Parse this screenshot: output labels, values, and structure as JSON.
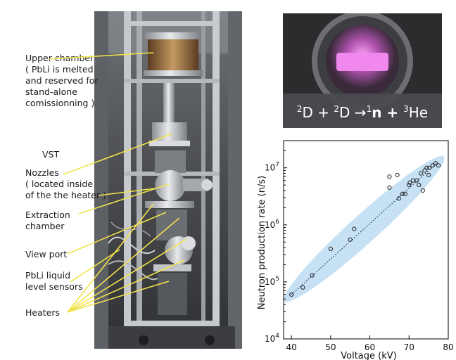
{
  "labels": {
    "upper_chamber": [
      "Upper chamber",
      "( PbLi is melted",
      "and reserved for",
      "stand-alone",
      "comissionning )"
    ],
    "vst": "VST",
    "nozzles": [
      "Nozzles",
      "( located inside",
      "of the the heater )"
    ],
    "extraction": [
      "Extraction",
      "chamber"
    ],
    "view_port": "View port",
    "level_sensors": [
      "PbLi liquid",
      "level sensors"
    ],
    "heaters": "Heaters"
  },
  "plasma_equation": {
    "m1": "2",
    "s1": "D + ",
    "m2": "2",
    "s2": "D →",
    "m3": "1",
    "s3": "n + ",
    "m4": "3",
    "s4": "He"
  },
  "colors": {
    "leader": "#f2e34a",
    "band": "#bcdcf2",
    "frame": "#b9bcc0",
    "plasma": "#e77be6"
  },
  "chart_data": {
    "type": "scatter",
    "xlabel": "Voltage (kV)",
    "ylabel": "Neutron production rate (n/s)",
    "xlim": [
      38,
      80
    ],
    "ylim": [
      10000,
      30000000
    ],
    "yscale": "log",
    "xticks": [
      40,
      50,
      60,
      70,
      80
    ],
    "yticks": [
      {
        "value": 10000,
        "base": "10",
        "exp": "4"
      },
      {
        "value": 100000,
        "base": "10",
        "exp": "5"
      },
      {
        "value": 1000000,
        "base": "10",
        "exp": "6"
      },
      {
        "value": 10000000,
        "base": "10",
        "exp": "7"
      }
    ],
    "points": [
      [
        40,
        60000
      ],
      [
        42.9,
        80000
      ],
      [
        45.3,
        130000
      ],
      [
        50,
        380000
      ],
      [
        55,
        550000
      ],
      [
        56,
        850000
      ],
      [
        65,
        4500000
      ],
      [
        65,
        7000000
      ],
      [
        67,
        7500000
      ],
      [
        67.4,
        2900000
      ],
      [
        68.3,
        3500000
      ],
      [
        69,
        3500000
      ],
      [
        70,
        5000000
      ],
      [
        70.2,
        5500000
      ],
      [
        71,
        6000000
      ],
      [
        72,
        6000000
      ],
      [
        72.5,
        5000000
      ],
      [
        73,
        8000000
      ],
      [
        73.5,
        4000000
      ],
      [
        74,
        9000000
      ],
      [
        74.5,
        10000000
      ],
      [
        75,
        7500000
      ],
      [
        75.2,
        10000000
      ],
      [
        76,
        11000000
      ],
      [
        76.8,
        12000000
      ],
      [
        77.5,
        11000000
      ]
    ],
    "trend": [
      [
        40,
        60000
      ],
      [
        77,
        12000000
      ]
    ]
  }
}
